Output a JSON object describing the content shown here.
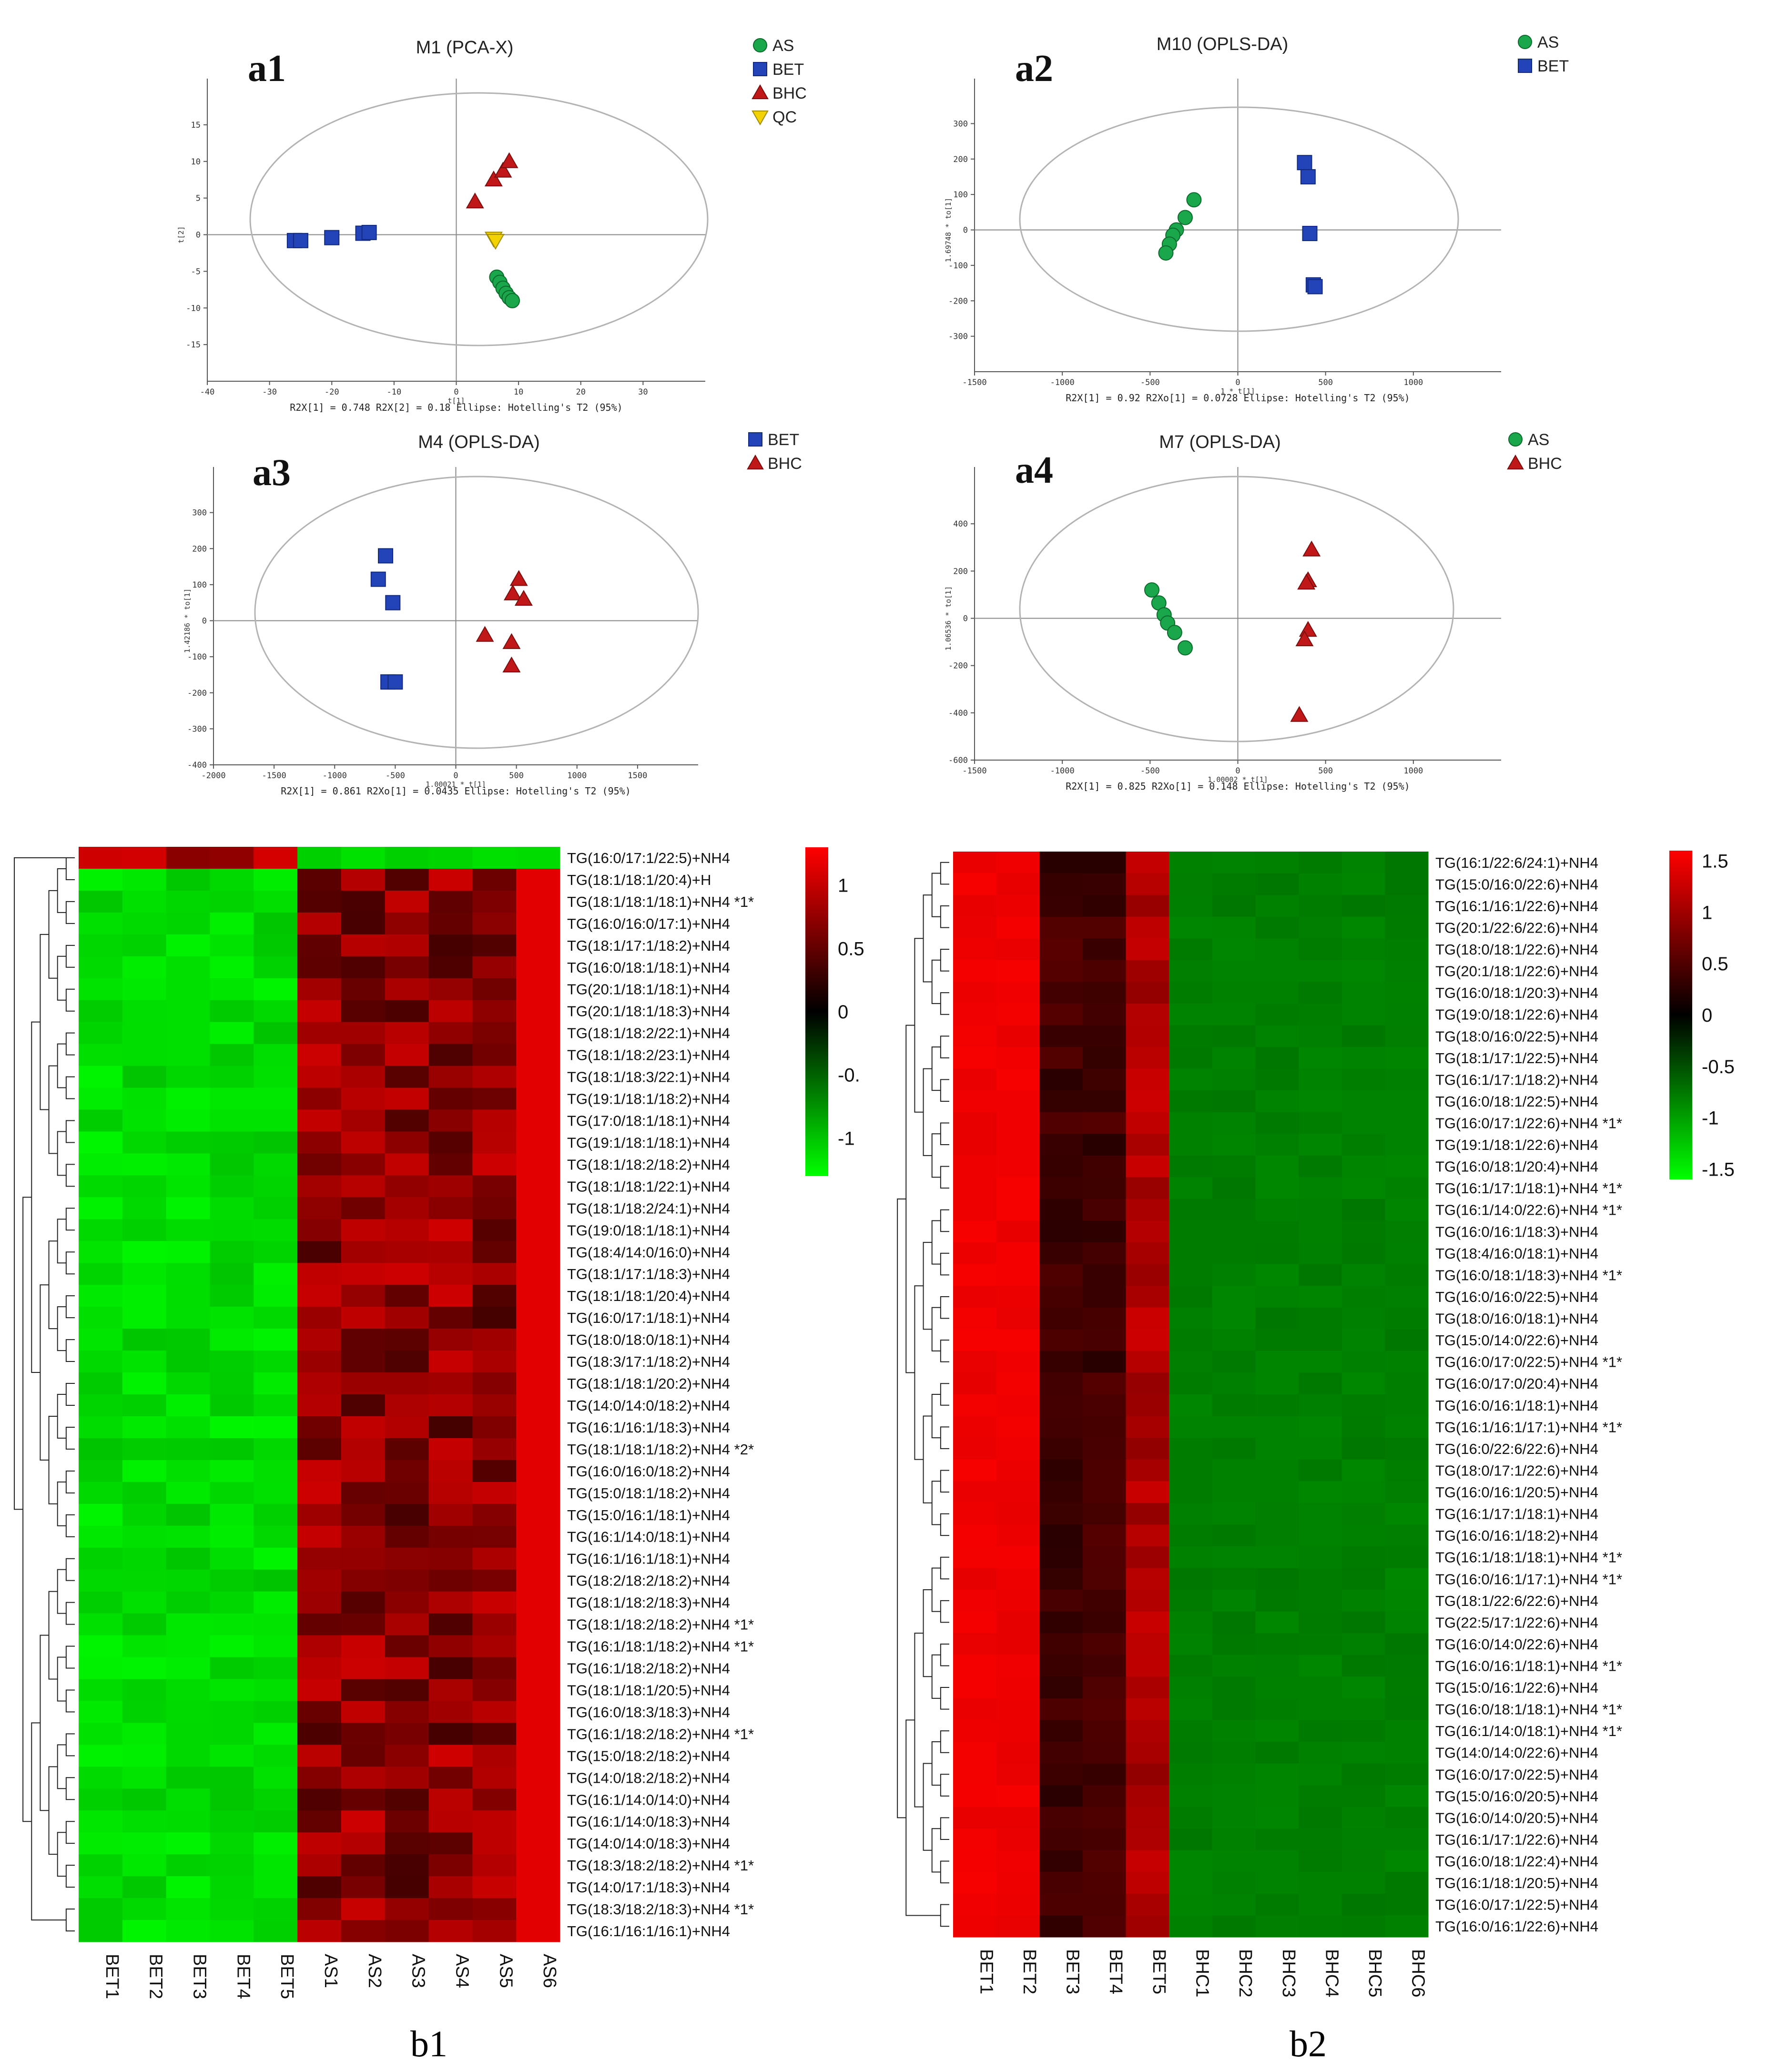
{
  "scores": [
    {
      "id": "a1",
      "label": "a1",
      "title": "M1 (PCA-X)",
      "xlabel": "t[1]",
      "ylabel": "t[2]",
      "xlim": [
        -40,
        40
      ],
      "ylim": [
        -20,
        20
      ],
      "xticks": [
        "-40",
        "-30",
        "-20",
        "-10",
        "0",
        "10",
        "20",
        "30"
      ],
      "yticks": [
        "15",
        "10",
        "5",
        "0",
        "-5",
        "-10",
        "-15"
      ],
      "footer": "R2X[1] = 0.748     R2X[2] = 0.18     Ellipse: Hotelling's T2 (95%)",
      "legend": [
        {
          "name": "AS",
          "marker": "circle",
          "color": "#1aa64a"
        },
        {
          "name": "BET",
          "marker": "square",
          "color": "#2244b8"
        },
        {
          "name": "BHC",
          "marker": "triangle",
          "color": "#c01818"
        },
        {
          "name": "QC",
          "marker": "triangle-down",
          "color": "#f2d200"
        }
      ],
      "points": [
        {
          "group": "BET",
          "x": -26,
          "y": -0.8
        },
        {
          "group": "BET",
          "x": -25,
          "y": -0.8
        },
        {
          "group": "BET",
          "x": -20,
          "y": -0.4
        },
        {
          "group": "BET",
          "x": -15,
          "y": 0.2
        },
        {
          "group": "BET",
          "x": -14,
          "y": 0.3
        },
        {
          "group": "BHC",
          "x": 3,
          "y": 4.5
        },
        {
          "group": "BHC",
          "x": 6,
          "y": 7.5
        },
        {
          "group": "BHC",
          "x": 7.5,
          "y": 8.7
        },
        {
          "group": "BHC",
          "x": 8.5,
          "y": 10
        },
        {
          "group": "QC",
          "x": 6,
          "y": -0.5
        },
        {
          "group": "QC",
          "x": 6.3,
          "y": -0.8
        },
        {
          "group": "AS",
          "x": 6.5,
          "y": -5.8
        },
        {
          "group": "AS",
          "x": 7,
          "y": -6.5
        },
        {
          "group": "AS",
          "x": 7.5,
          "y": -7.3
        },
        {
          "group": "AS",
          "x": 8,
          "y": -8
        },
        {
          "group": "AS",
          "x": 8.5,
          "y": -8.6
        },
        {
          "group": "AS",
          "x": 9,
          "y": -9
        }
      ]
    },
    {
      "id": "a2",
      "label": "a2",
      "title": "M10 (OPLS-DA)",
      "xlabel": "1 * t[1]",
      "ylabel": "1.69748 * to[1]",
      "xlim": [
        -1500,
        1500
      ],
      "ylim": [
        -400,
        400
      ],
      "xticks": [
        "-1500",
        "-1000",
        "-500",
        "0",
        "500",
        "1000"
      ],
      "yticks": [
        "300",
        "200",
        "100",
        "0",
        "-100",
        "-200",
        "-300"
      ],
      "footer": "R2X[1] = 0.92     R2Xo[1] = 0.0728     Ellipse: Hotelling's T2 (95%)",
      "legend": [
        {
          "name": "AS",
          "marker": "circle",
          "color": "#1aa64a"
        },
        {
          "name": "BET",
          "marker": "square",
          "color": "#2244b8"
        }
      ],
      "points": [
        {
          "group": "AS",
          "x": -250,
          "y": 85
        },
        {
          "group": "AS",
          "x": -300,
          "y": 35
        },
        {
          "group": "AS",
          "x": -350,
          "y": 0
        },
        {
          "group": "AS",
          "x": -370,
          "y": -15
        },
        {
          "group": "AS",
          "x": -390,
          "y": -40
        },
        {
          "group": "AS",
          "x": -410,
          "y": -65
        },
        {
          "group": "BET",
          "x": 380,
          "y": 190
        },
        {
          "group": "BET",
          "x": 400,
          "y": 150
        },
        {
          "group": "BET",
          "x": 410,
          "y": -10
        },
        {
          "group": "BET",
          "x": 430,
          "y": -155
        },
        {
          "group": "BET",
          "x": 440,
          "y": -160
        }
      ]
    },
    {
      "id": "a3",
      "label": "a3",
      "title": "M4 (OPLS-DA)",
      "xlabel": "1.00021 * t[1]",
      "ylabel": "1.42186 * to[1]",
      "xlim": [
        -2000,
        2000
      ],
      "ylim": [
        -400,
        400
      ],
      "xticks": [
        "-2000",
        "-1500",
        "-1000",
        "-500",
        "0",
        "500",
        "1000",
        "1500"
      ],
      "yticks": [
        "300",
        "200",
        "100",
        "0",
        "-100",
        "-200",
        "-300",
        "-400"
      ],
      "footer": "R2X[1] = 0.861     R2Xo[1] = 0.0435     Ellipse: Hotelling's T2 (95%)",
      "legend": [
        {
          "name": "BET",
          "marker": "square",
          "color": "#2244b8"
        },
        {
          "name": "BHC",
          "marker": "triangle",
          "color": "#c01818"
        }
      ],
      "points": [
        {
          "group": "BET",
          "x": -580,
          "y": 180
        },
        {
          "group": "BET",
          "x": -640,
          "y": 115
        },
        {
          "group": "BET",
          "x": -520,
          "y": 50
        },
        {
          "group": "BET",
          "x": -560,
          "y": -170
        },
        {
          "group": "BET",
          "x": -500,
          "y": -170
        },
        {
          "group": "BHC",
          "x": 520,
          "y": 115
        },
        {
          "group": "BHC",
          "x": 470,
          "y": 75
        },
        {
          "group": "BHC",
          "x": 560,
          "y": 60
        },
        {
          "group": "BHC",
          "x": 240,
          "y": -40
        },
        {
          "group": "BHC",
          "x": 460,
          "y": -60
        },
        {
          "group": "BHC",
          "x": 460,
          "y": -125
        }
      ]
    },
    {
      "id": "a4",
      "label": "a4",
      "title": "M7 (OPLS-DA)",
      "xlabel": "1.00002 * t[1]",
      "ylabel": "1.06536 * to[1]",
      "xlim": [
        -1500,
        1500
      ],
      "ylim": [
        -600,
        600
      ],
      "xticks": [
        "-1500",
        "-1000",
        "-500",
        "0",
        "500",
        "1000"
      ],
      "yticks": [
        "400",
        "200",
        "0",
        "-200",
        "-400",
        "-600"
      ],
      "footer": "R2X[1] = 0.825     R2Xo[1] = 0.148     Ellipse: Hotelling's T2 (95%)",
      "legend": [
        {
          "name": "AS",
          "marker": "circle",
          "color": "#1aa64a"
        },
        {
          "name": "BHC",
          "marker": "triangle",
          "color": "#c01818"
        }
      ],
      "points": [
        {
          "group": "AS",
          "x": -490,
          "y": 120
        },
        {
          "group": "AS",
          "x": -450,
          "y": 65
        },
        {
          "group": "AS",
          "x": -420,
          "y": 15
        },
        {
          "group": "AS",
          "x": -400,
          "y": -20
        },
        {
          "group": "AS",
          "x": -360,
          "y": -60
        },
        {
          "group": "AS",
          "x": -300,
          "y": -125
        },
        {
          "group": "BHC",
          "x": 420,
          "y": 290
        },
        {
          "group": "BHC",
          "x": 400,
          "y": 160
        },
        {
          "group": "BHC",
          "x": 390,
          "y": 150
        },
        {
          "group": "BHC",
          "x": 400,
          "y": -50
        },
        {
          "group": "BHC",
          "x": 380,
          "y": -90
        },
        {
          "group": "BHC",
          "x": 350,
          "y": -410
        }
      ]
    }
  ],
  "heatmaps": [
    {
      "id": "b1",
      "panel_label": "b1",
      "columns": [
        "BET1",
        "BET2",
        "BET3",
        "BET4",
        "BET5",
        "AS1",
        "AS2",
        "AS3",
        "AS4",
        "AS5",
        "AS6"
      ],
      "rows": [
        "TG(16:0/17:1/22:5)+NH4",
        "TG(18:1/18:1/20:4)+H",
        "TG(18:1/18:1/18:1)+NH4 *1*",
        "TG(16:0/16:0/17:1)+NH4",
        "TG(18:1/17:1/18:2)+NH4",
        "TG(16:0/18:1/18:1)+NH4",
        "TG(20:1/18:1/18:1)+NH4",
        "TG(20:1/18:1/18:3)+NH4",
        "TG(18:1/18:2/22:1)+NH4",
        "TG(18:1/18:2/23:1)+NH4",
        "TG(18:1/18:3/22:1)+NH4",
        "TG(19:1/18:1/18:2)+NH4",
        "TG(17:0/18:1/18:1)+NH4",
        "TG(19:1/18:1/18:1)+NH4",
        "TG(18:1/18:2/18:2)+NH4",
        "TG(18:1/18:1/22:1)+NH4",
        "TG(18:1/18:2/24:1)+NH4",
        "TG(19:0/18:1/18:1)+NH4",
        "TG(18:4/14:0/16:0)+NH4",
        "TG(18:1/17:1/18:3)+NH4",
        "TG(18:1/18:1/20:4)+NH4",
        "TG(16:0/17:1/18:1)+NH4",
        "TG(18:0/18:0/18:1)+NH4",
        "TG(18:3/17:1/18:2)+NH4",
        "TG(18:1/18:1/20:2)+NH4",
        "TG(14:0/14:0/18:2)+NH4",
        "TG(16:1/16:1/18:3)+NH4",
        "TG(18:1/18:1/18:2)+NH4 *2*",
        "TG(16:0/16:0/18:2)+NH4",
        "TG(15:0/18:1/18:2)+NH4",
        "TG(15:0/16:1/18:1)+NH4",
        "TG(16:1/14:0/18:1)+NH4",
        "TG(16:1/16:1/18:1)+NH4",
        "TG(18:2/18:2/18:2)+NH4",
        "TG(18:1/18:2/18:3)+NH4",
        "TG(18:1/18:2/18:2)+NH4 *1*",
        "TG(16:1/18:1/18:2)+NH4 *1*",
        "TG(16:1/18:2/18:2)+NH4",
        "TG(18:1/18:1/20:5)+NH4",
        "TG(16:0/18:3/18:3)+NH4",
        "TG(16:1/18:2/18:2)+NH4 *1*",
        "TG(15:0/18:2/18:2)+NH4",
        "TG(14:0/18:2/18:2)+NH4",
        "TG(16:1/14:0/14:0)+NH4",
        "TG(16:1/14:0/18:3)+NH4",
        "TG(14:0/14:0/18:3)+NH4",
        "TG(18:3/18:2/18:2)+NH4 *1*",
        "TG(14:0/17:1/18:3)+NH4",
        "TG(18:3/18:2/18:3)+NH4 *1*",
        "TG(16:1/16:1/16:1)+NH4"
      ],
      "colorbar": {
        "ticks": [
          "1",
          "0.5",
          "0",
          "-0.",
          "-1"
        ],
        "tick_values": [
          1,
          0.5,
          0,
          -0.5,
          -1
        ],
        "range": [
          -1.3,
          1.3
        ],
        "colors": {
          "high": "#ff0000",
          "mid": "#000000",
          "low": "#00ff00"
        }
      }
    },
    {
      "id": "b2",
      "panel_label": "b2",
      "columns": [
        "BET1",
        "BET2",
        "BET3",
        "BET4",
        "BET5",
        "BHC1",
        "BHC2",
        "BHC3",
        "BHC4",
        "BHC5",
        "BHC6"
      ],
      "rows": [
        "TG(16:1/22:6/24:1)+NH4",
        "TG(15:0/16:0/22:6)+NH4",
        "TG(16:1/16:1/22:6)+NH4",
        "TG(20:1/22:6/22:6)+NH4",
        "TG(18:0/18:1/22:6)+NH4",
        "TG(20:1/18:1/22:6)+NH4",
        "TG(16:0/18:1/20:3)+NH4",
        "TG(19:0/18:1/22:6)+NH4",
        "TG(18:0/16:0/22:5)+NH4",
        "TG(18:1/17:1/22:5)+NH4",
        "TG(16:1/17:1/18:2)+NH4",
        "TG(16:0/18:1/22:5)+NH4",
        "TG(16:0/17:1/22:6)+NH4 *1*",
        "TG(19:1/18:1/22:6)+NH4",
        "TG(16:0/18:1/20:4)+NH4",
        "TG(16:1/17:1/18:1)+NH4 *1*",
        "TG(16:1/14:0/22:6)+NH4 *1*",
        "TG(16:0/16:1/18:3)+NH4",
        "TG(18:4/16:0/18:1)+NH4",
        "TG(16:0/18:1/18:3)+NH4 *1*",
        "TG(16:0/16:0/22:5)+NH4",
        "TG(18:0/16:0/18:1)+NH4",
        "TG(15:0/14:0/22:6)+NH4",
        "TG(16:0/17:0/22:5)+NH4 *1*",
        "TG(16:0/17:0/20:4)+NH4",
        "TG(16:0/16:1/18:1)+NH4",
        "TG(16:1/16:1/17:1)+NH4 *1*",
        "TG(16:0/22:6/22:6)+NH4",
        "TG(18:0/17:1/22:6)+NH4",
        "TG(16:0/16:1/20:5)+NH4",
        "TG(16:1/17:1/18:1)+NH4",
        "TG(16:0/16:1/18:2)+NH4",
        "TG(16:1/18:1/18:1)+NH4 *1*",
        "TG(16:0/16:1/17:1)+NH4 *1*",
        "TG(18:1/22:6/22:6)+NH4",
        "TG(22:5/17:1/22:6)+NH4",
        "TG(16:0/14:0/22:6)+NH4",
        "TG(16:0/16:1/18:1)+NH4 *1*",
        "TG(15:0/16:1/22:6)+NH4",
        "TG(16:0/18:1/18:1)+NH4 *1*",
        "TG(16:1/14:0/18:1)+NH4 *1*",
        "TG(14:0/14:0/22:6)+NH4",
        "TG(16:0/17:0/22:5)+NH4",
        "TG(15:0/16:0/20:5)+NH4",
        "TG(16:0/14:0/20:5)+NH4",
        "TG(16:1/17:1/22:6)+NH4",
        "TG(16:0/18:1/22:4)+NH4",
        "TG(16:1/18:1/20:5)+NH4",
        "TG(16:0/17:1/22:5)+NH4",
        "TG(16:0/16:1/22:6)+NH4"
      ],
      "colorbar": {
        "ticks": [
          "1.5",
          "1",
          "0.5",
          "0",
          "-0.5",
          "-1",
          "-1.5"
        ],
        "tick_values": [
          1.5,
          1,
          0.5,
          0,
          -0.5,
          -1,
          -1.5
        ],
        "range": [
          -1.6,
          1.6
        ],
        "colors": {
          "high": "#ff0000",
          "mid": "#000000",
          "low": "#00ff00"
        }
      }
    }
  ],
  "chart_data": [
    {
      "type": "scatter",
      "title": "M1 (PCA-X)",
      "xlabel": "t[1]",
      "ylabel": "t[2]",
      "xlim": [
        -40,
        40
      ],
      "ylim": [
        -20,
        20
      ],
      "series": [
        {
          "name": "AS",
          "x": [
            6.5,
            7,
            7.5,
            8,
            8.5,
            9
          ],
          "y": [
            -5.8,
            -6.5,
            -7.3,
            -8,
            -8.6,
            -9
          ]
        },
        {
          "name": "BET",
          "x": [
            -26,
            -25,
            -20,
            -15,
            -14
          ],
          "y": [
            -0.8,
            -0.8,
            -0.4,
            0.2,
            0.3
          ]
        },
        {
          "name": "BHC",
          "x": [
            3,
            6,
            7.5,
            8.5
          ],
          "y": [
            4.5,
            7.5,
            8.7,
            10
          ]
        },
        {
          "name": "QC",
          "x": [
            6,
            6.3
          ],
          "y": [
            -0.5,
            -0.8
          ]
        }
      ]
    },
    {
      "type": "scatter",
      "title": "M10 (OPLS-DA)",
      "xlim": [
        -1500,
        1500
      ],
      "ylim": [
        -400,
        400
      ],
      "series": [
        {
          "name": "AS",
          "x": [
            -250,
            -300,
            -350,
            -370,
            -390,
            -410
          ],
          "y": [
            85,
            35,
            0,
            -15,
            -40,
            -65
          ]
        },
        {
          "name": "BET",
          "x": [
            380,
            400,
            410,
            430,
            440
          ],
          "y": [
            190,
            150,
            -10,
            -155,
            -160
          ]
        }
      ]
    },
    {
      "type": "scatter",
      "title": "M4 (OPLS-DA)",
      "xlim": [
        -2000,
        2000
      ],
      "ylim": [
        -400,
        400
      ],
      "series": [
        {
          "name": "BET",
          "x": [
            -580,
            -640,
            -520,
            -560,
            -500
          ],
          "y": [
            180,
            115,
            50,
            -170,
            -170
          ]
        },
        {
          "name": "BHC",
          "x": [
            520,
            470,
            560,
            240,
            460,
            460
          ],
          "y": [
            115,
            75,
            60,
            -40,
            -60,
            -125
          ]
        }
      ]
    },
    {
      "type": "scatter",
      "title": "M7 (OPLS-DA)",
      "xlim": [
        -1500,
        1500
      ],
      "ylim": [
        -600,
        600
      ],
      "series": [
        {
          "name": "AS",
          "x": [
            -490,
            -450,
            -420,
            -400,
            -360,
            -300
          ],
          "y": [
            120,
            65,
            15,
            -20,
            -60,
            -125
          ]
        },
        {
          "name": "BHC",
          "x": [
            420,
            400,
            390,
            400,
            380,
            350
          ],
          "y": [
            290,
            160,
            150,
            -50,
            -90,
            -410
          ]
        }
      ]
    },
    {
      "type": "heatmap",
      "panel": "b1",
      "columns": "see heatmaps[0].columns",
      "rows": "see heatmaps[0].rows",
      "pattern": "BET1-BET5 low (green, about -1.1) for all rows except the first row (red, about +1.1); AS1-AS6 high (red, about +0.6 to +1.2) except first row (green)"
    },
    {
      "type": "heatmap",
      "panel": "b2",
      "columns": "see heatmaps[1].columns",
      "rows": "see heatmaps[1].rows",
      "pattern": "BET1-BET2 strongly high (about +1.5), BET3-BET4 moderately high (about +0.4), BET5 high (about +1.1); BHC1-BHC6 low (about -0.8)"
    }
  ]
}
